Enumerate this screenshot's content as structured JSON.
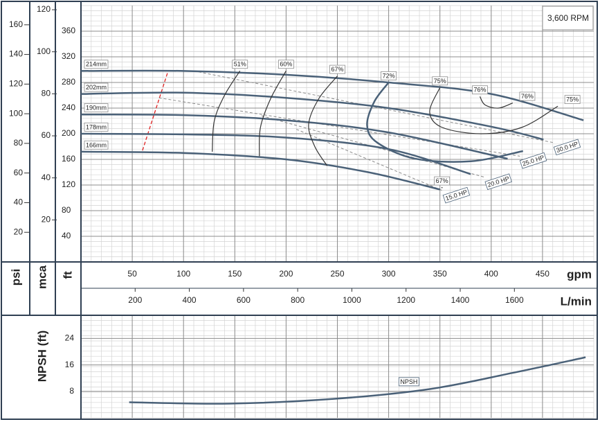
{
  "chart_data": {
    "type": "pump-curve",
    "annotation": "3,600 RPM",
    "xlabel": "gpm",
    "xlim": [
      0,
      500
    ],
    "xticks": [
      50,
      100,
      150,
      200,
      250,
      300,
      350,
      400,
      450
    ],
    "x2label": "L/min",
    "x2lim": [
      0,
      1893
    ],
    "x2ticks": [
      200,
      400,
      600,
      800,
      1000,
      1200,
      1400,
      1600
    ],
    "ylabel": "ft",
    "ylim": [
      0,
      400
    ],
    "yticks": [
      40,
      80,
      120,
      160,
      200,
      240,
      280,
      320,
      360
    ],
    "y2label": "psi",
    "y2lim": [
      0,
      173
    ],
    "y2ticks": [
      20,
      40,
      60,
      80,
      100,
      120,
      140,
      160
    ],
    "y3label": "mca",
    "y3lim": [
      0,
      122
    ],
    "y3ticks": [
      20,
      40,
      60,
      80,
      100,
      120
    ],
    "grid": true,
    "curve_color": "#4a6178",
    "impellers": [
      {
        "name": "214mm",
        "x": [
          0,
          100,
          200,
          300,
          400,
          490
        ],
        "values": [
          298,
          298,
          292,
          280,
          262,
          221
        ]
      },
      {
        "name": "202mm",
        "x": [
          0,
          100,
          200,
          300,
          400,
          451
        ],
        "values": [
          262,
          264,
          256,
          240,
          211,
          191
        ]
      },
      {
        "name": "190mm",
        "x": [
          0,
          100,
          200,
          300,
          416
        ],
        "values": [
          230,
          229,
          221,
          202,
          161
        ]
      },
      {
        "name": "178mm",
        "x": [
          0,
          100,
          200,
          300,
          380
        ],
        "values": [
          200,
          199,
          194,
          176,
          137
        ]
      },
      {
        "name": "166mm",
        "x": [
          0,
          100,
          200,
          280,
          350
        ],
        "values": [
          172,
          170,
          160,
          140,
          113
        ]
      }
    ],
    "hp_color": "#8a8a8a",
    "hp_lines": [
      {
        "name": "30.0 HP",
        "x": [
          110,
          461
        ],
        "values": [
          298,
          186
        ]
      },
      {
        "name": "25.0 HP",
        "x": [
          76,
          428
        ],
        "values": [
          256,
          165
        ]
      },
      {
        "name": "20.0 HP",
        "x": [
          176,
          394
        ],
        "values": [
          228,
          132
        ]
      },
      {
        "name": "15.0 HP",
        "x": [
          210,
          353
        ],
        "values": [
          207,
          111
        ]
      }
    ],
    "efficiency_color": "#333333",
    "efficiency": [
      {
        "labels": [
          "51%"
        ],
        "x": [
          155,
          140,
          130,
          128
        ],
        "values": [
          298,
          260,
          220,
          172
        ]
      },
      {
        "labels": [
          "60%"
        ],
        "x": [
          200,
          185,
          175,
          174
        ],
        "values": [
          298,
          255,
          210,
          165
        ]
      },
      {
        "labels": [
          "67%"
        ],
        "x": [
          250,
          232,
          222,
          228,
          240
        ],
        "values": [
          290,
          255,
          215,
          180,
          150
        ]
      },
      {
        "labels": [
          "67%"
        ],
        "x": [
          352
        ],
        "values": [
          116
        ]
      },
      {
        "labels": [
          "72%"
        ],
        "x": [
          300,
          286,
          279,
          289,
          326,
          380,
          431
        ],
        "values": [
          280,
          250,
          213,
          186,
          161,
          157,
          173
        ]
      },
      {
        "labels": [
          "75%",
          "75%"
        ],
        "x": [
          350,
          340,
          352,
          390,
          430,
          465
        ],
        "values": [
          272,
          234,
          210,
          200,
          210,
          243
        ]
      },
      {
        "labels": [
          "76%",
          "76%"
        ],
        "x": [
          389,
          394,
          407,
          421
        ],
        "values": [
          258,
          245,
          240,
          248
        ]
      }
    ],
    "limit_line": {
      "color": "#e02020",
      "x": [
        60,
        85
      ],
      "values": [
        174,
        298
      ]
    },
    "npsh": {
      "ylabel": "NPSH (ft)",
      "name": "NPSH",
      "ylim": [
        0,
        31
      ],
      "yticks": [
        8,
        16,
        24
      ],
      "x": [
        47,
        144,
        245,
        340,
        421,
        492
      ],
      "values": [
        4.7,
        4.3,
        5.7,
        8.7,
        13.6,
        18.3
      ]
    }
  }
}
